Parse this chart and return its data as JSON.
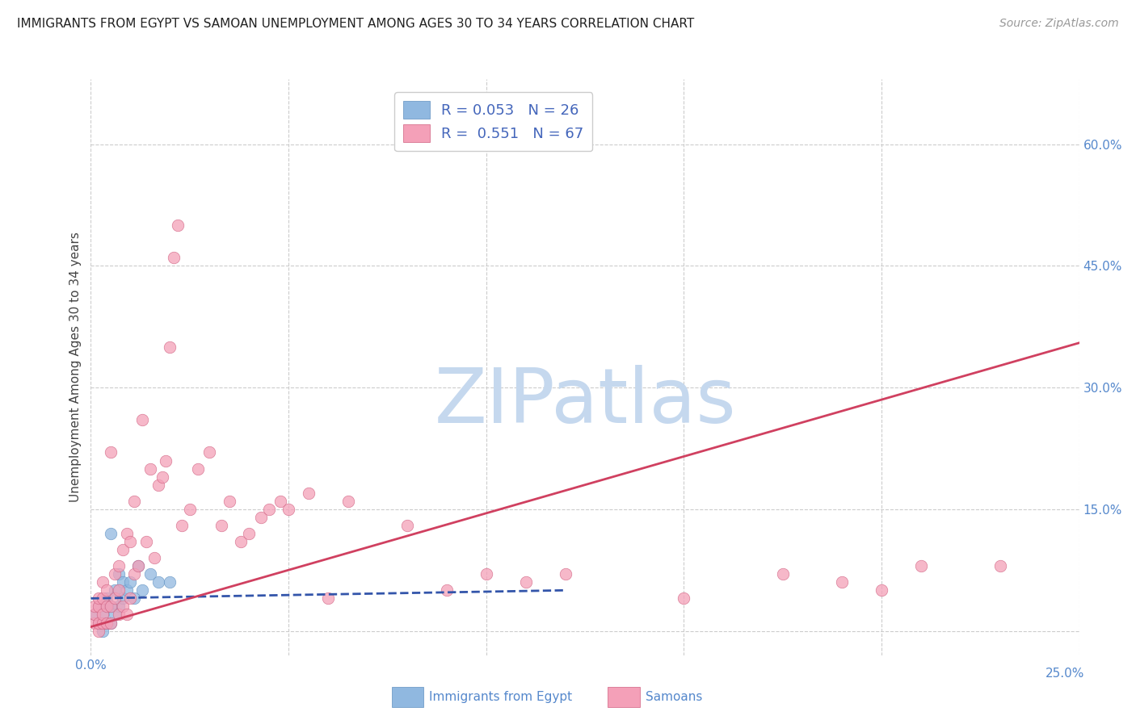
{
  "title": "IMMIGRANTS FROM EGYPT VS SAMOAN UNEMPLOYMENT AMONG AGES 30 TO 34 YEARS CORRELATION CHART",
  "source": "Source: ZipAtlas.com",
  "ylabel": "Unemployment Among Ages 30 to 34 years",
  "xlim": [
    0.0,
    0.25
  ],
  "ylim": [
    -0.03,
    0.68
  ],
  "xticks": [
    0.0,
    0.05,
    0.1,
    0.15,
    0.2,
    0.25
  ],
  "yticks_right": [
    0.0,
    0.15,
    0.3,
    0.45,
    0.6
  ],
  "ytick_labels_right": [
    "",
    "15.0%",
    "30.0%",
    "45.0%",
    "60.0%"
  ],
  "blue_scatter_x": [
    0.001,
    0.002,
    0.002,
    0.003,
    0.003,
    0.003,
    0.004,
    0.004,
    0.004,
    0.005,
    0.005,
    0.005,
    0.006,
    0.006,
    0.007,
    0.007,
    0.008,
    0.008,
    0.009,
    0.01,
    0.011,
    0.012,
    0.013,
    0.015,
    0.017,
    0.02
  ],
  "blue_scatter_y": [
    0.02,
    0.01,
    0.03,
    0.0,
    0.01,
    0.02,
    0.01,
    0.03,
    0.04,
    0.01,
    0.03,
    0.12,
    0.02,
    0.05,
    0.03,
    0.07,
    0.04,
    0.06,
    0.05,
    0.06,
    0.04,
    0.08,
    0.05,
    0.07,
    0.06,
    0.06
  ],
  "pink_scatter_x": [
    0.001,
    0.001,
    0.001,
    0.002,
    0.002,
    0.002,
    0.002,
    0.003,
    0.003,
    0.003,
    0.003,
    0.004,
    0.004,
    0.004,
    0.005,
    0.005,
    0.005,
    0.006,
    0.006,
    0.007,
    0.007,
    0.007,
    0.008,
    0.008,
    0.009,
    0.009,
    0.01,
    0.01,
    0.011,
    0.011,
    0.012,
    0.013,
    0.014,
    0.015,
    0.016,
    0.017,
    0.018,
    0.019,
    0.02,
    0.021,
    0.022,
    0.023,
    0.025,
    0.027,
    0.03,
    0.033,
    0.035,
    0.038,
    0.04,
    0.043,
    0.045,
    0.048,
    0.05,
    0.055,
    0.06,
    0.065,
    0.08,
    0.09,
    0.1,
    0.11,
    0.12,
    0.15,
    0.175,
    0.19,
    0.2,
    0.21,
    0.23
  ],
  "pink_scatter_y": [
    0.01,
    0.02,
    0.03,
    0.0,
    0.01,
    0.03,
    0.04,
    0.01,
    0.02,
    0.04,
    0.06,
    0.01,
    0.03,
    0.05,
    0.01,
    0.03,
    0.22,
    0.04,
    0.07,
    0.02,
    0.05,
    0.08,
    0.03,
    0.1,
    0.02,
    0.12,
    0.04,
    0.11,
    0.07,
    0.16,
    0.08,
    0.26,
    0.11,
    0.2,
    0.09,
    0.18,
    0.19,
    0.21,
    0.35,
    0.46,
    0.5,
    0.13,
    0.15,
    0.2,
    0.22,
    0.13,
    0.16,
    0.11,
    0.12,
    0.14,
    0.15,
    0.16,
    0.15,
    0.17,
    0.04,
    0.16,
    0.13,
    0.05,
    0.07,
    0.06,
    0.07,
    0.04,
    0.07,
    0.06,
    0.05,
    0.08,
    0.08
  ],
  "blue_line_x": [
    0.0,
    0.12
  ],
  "blue_line_y": [
    0.04,
    0.05
  ],
  "pink_line_x": [
    0.0,
    0.25
  ],
  "pink_line_y": [
    0.005,
    0.355
  ],
  "watermark_zip": "ZIP",
  "watermark_atlas": "atlas",
  "watermark_color_zip": "#c5d8ee",
  "watermark_color_atlas": "#c5d8ee",
  "scatter_blue_color": "#90b8e0",
  "scatter_blue_edge": "#6090c0",
  "scatter_pink_color": "#f4a0b8",
  "scatter_pink_edge": "#d06080",
  "line_blue_color": "#3355aa",
  "line_pink_color": "#d04060",
  "grid_color": "#cccccc",
  "background_color": "#ffffff",
  "title_fontsize": 11,
  "axis_label_fontsize": 11,
  "tick_fontsize": 11,
  "legend_fontsize": 13,
  "source_fontsize": 10
}
